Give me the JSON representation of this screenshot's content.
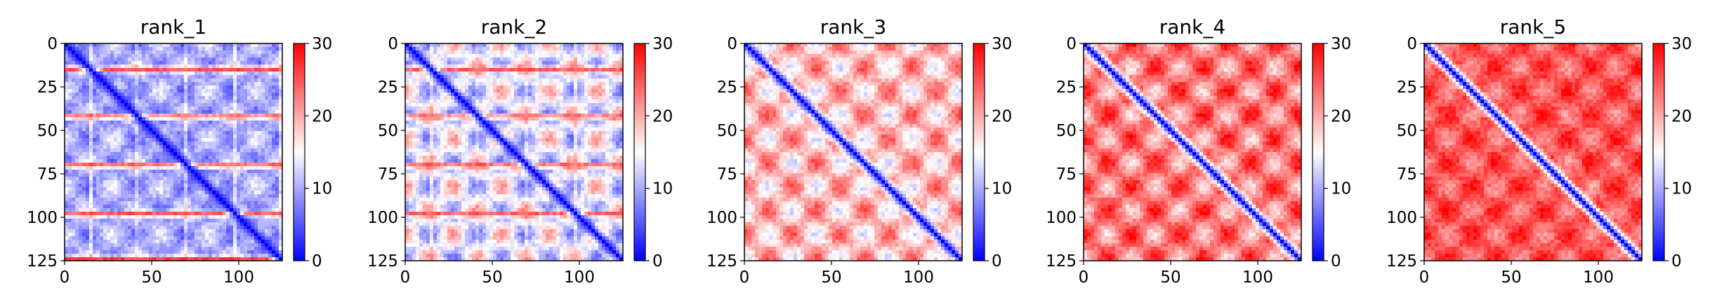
{
  "chart_data": {
    "type": "heatmap",
    "colormap": {
      "name": "bwr",
      "low": "#0000ff",
      "mid": "#ffffff",
      "high": "#ff0000"
    },
    "panels": [
      {
        "title": "rank_1",
        "matrix_size": 125,
        "color_range": [
          0,
          30
        ],
        "diagonal_value": 0,
        "base_value": 10,
        "band_value": 26,
        "band_rows": [
          15,
          42,
          70,
          98,
          124
        ],
        "checker_amplitude": 4
      },
      {
        "title": "rank_2",
        "matrix_size": 125,
        "color_range": [
          0,
          30
        ],
        "diagonal_value": 0,
        "base_value": 14,
        "band_value": 25,
        "band_rows": [
          15,
          42,
          70,
          98
        ],
        "checker_amplitude": 7
      },
      {
        "title": "rank_3",
        "matrix_size": 125,
        "color_range": [
          0,
          30
        ],
        "diagonal_value": 0,
        "base_value": 19,
        "band_value": 24,
        "band_rows": [],
        "checker_amplitude": 6
      },
      {
        "title": "rank_4",
        "matrix_size": 125,
        "color_range": [
          0,
          30
        ],
        "diagonal_value": 0,
        "base_value": 23,
        "band_value": 26,
        "band_rows": [],
        "checker_amplitude": 6
      },
      {
        "title": "rank_5",
        "matrix_size": 125,
        "color_range": [
          0,
          30
        ],
        "diagonal_value": 0,
        "base_value": 25,
        "band_value": 27,
        "band_rows": [],
        "checker_amplitude": 4
      }
    ],
    "x_ticks": [
      "0",
      "50",
      "100"
    ],
    "x_tick_values": [
      0,
      50,
      100
    ],
    "y_ticks": [
      "0",
      "25",
      "50",
      "75",
      "100",
      "125"
    ],
    "y_tick_values": [
      0,
      25,
      50,
      75,
      100,
      125
    ],
    "colorbar_ticks": [
      "0",
      "10",
      "20",
      "30"
    ],
    "colorbar_tick_values": [
      0,
      10,
      20,
      30
    ],
    "grid": false,
    "legend": "colorbar-right-of-each-panel"
  }
}
